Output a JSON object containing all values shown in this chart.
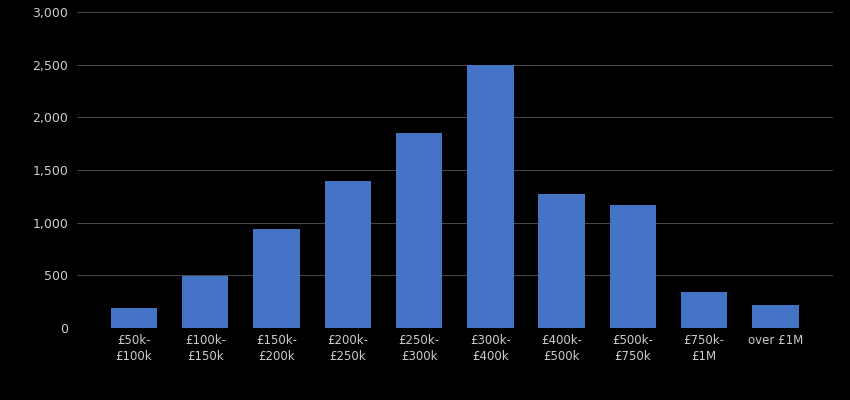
{
  "categories": [
    "£50k-\n£100k",
    "£100k-\n£150k",
    "£150k-\n£200k",
    "£200k-\n£250k",
    "£250k-\n£300k",
    "£300k-\n£400k",
    "£400k-\n£500k",
    "£500k-\n£750k",
    "£750k-\n£1M",
    "over £1M"
  ],
  "values": [
    190,
    490,
    940,
    1400,
    1850,
    2500,
    1270,
    1170,
    340,
    215
  ],
  "bar_color": "#4472c4",
  "background_color": "#000000",
  "text_color": "#cccccc",
  "grid_color": "#555555",
  "ylim": [
    0,
    3000
  ],
  "yticks": [
    0,
    500,
    1000,
    1500,
    2000,
    2500,
    3000
  ],
  "bar_width": 0.65
}
